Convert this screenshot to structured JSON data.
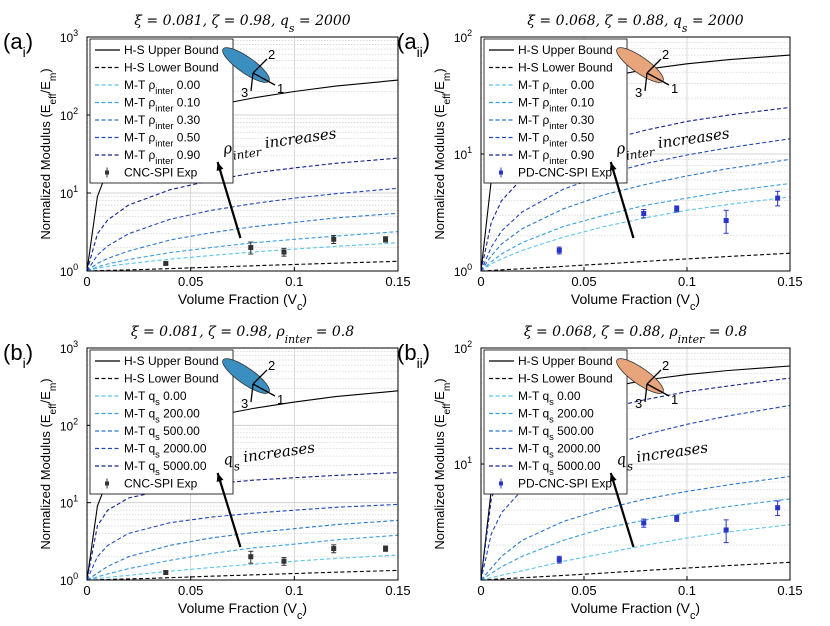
{
  "chart_data": [
    {
      "panel_label": "(a",
      "panel_label_sub": "i",
      "panel_label_close": ")",
      "type": "line",
      "title": "ξ = 0.081, ζ = 0.98, q_s = 2000",
      "xlabel": "Volume Fraction (V_c)",
      "ylabel": "Normalized Modulus (E_eff/E_m)",
      "xlim": [
        0,
        0.15
      ],
      "ylim": [
        1,
        1000
      ],
      "yscale": "log",
      "grid": true,
      "x_ticks": [
        "0",
        "0.05",
        "0.1",
        "0.15"
      ],
      "y_tick_exponents": [
        "0",
        "1",
        "2",
        "3"
      ],
      "legend_position": "top-left",
      "legend": [
        "H-S Upper Bound",
        "H-S Lower Bound",
        "M-T ρ_inter 0.00",
        "M-T ρ_inter 0.10",
        "M-T ρ_inter 0.30",
        "M-T ρ_inter 0.50",
        "M-T ρ_inter 0.90",
        "CNC-SPI Exp"
      ],
      "annotation": "ρ_inter increases",
      "inclusion_color": "#3b8fc0",
      "axes_labels": [
        "1",
        "2",
        "3"
      ],
      "series": [
        {
          "name": "H-S Upper Bound",
          "style": "solid",
          "color": "#000000",
          "x": [
            0,
            0.005,
            0.01,
            0.02,
            0.04,
            0.06,
            0.08,
            0.1,
            0.12,
            0.15
          ],
          "y": [
            1,
            9,
            20,
            45,
            90,
            130,
            165,
            200,
            235,
            280
          ]
        },
        {
          "name": "H-S Lower Bound",
          "style": "dashed",
          "color": "#000000",
          "x": [
            0,
            0.03,
            0.06,
            0.09,
            0.12,
            0.15
          ],
          "y": [
            1,
            1.05,
            1.12,
            1.19,
            1.26,
            1.33
          ]
        },
        {
          "name": "M-T ρ_inter 0.00",
          "style": "dashed",
          "color": "#5bc3ee",
          "x": [
            0,
            0.005,
            0.01,
            0.02,
            0.04,
            0.06,
            0.08,
            0.1,
            0.12,
            0.15
          ],
          "y": [
            1,
            1.09,
            1.15,
            1.24,
            1.42,
            1.58,
            1.75,
            1.91,
            2.07,
            2.3
          ]
        },
        {
          "name": "M-T ρ_inter 0.10",
          "style": "dashed",
          "color": "#3a9ee0",
          "x": [
            0,
            0.005,
            0.01,
            0.02,
            0.04,
            0.06,
            0.08,
            0.1,
            0.12,
            0.15
          ],
          "y": [
            1,
            1.13,
            1.23,
            1.4,
            1.72,
            2.0,
            2.3,
            2.55,
            2.8,
            3.2
          ]
        },
        {
          "name": "M-T ρ_inter 0.30",
          "style": "dashed",
          "color": "#2a78cc",
          "x": [
            0,
            0.005,
            0.01,
            0.02,
            0.04,
            0.06,
            0.08,
            0.1,
            0.12,
            0.15
          ],
          "y": [
            1,
            1.25,
            1.45,
            1.8,
            2.5,
            3.1,
            3.7,
            4.2,
            4.8,
            5.5
          ]
        },
        {
          "name": "M-T ρ_inter 0.50",
          "style": "dashed",
          "color": "#2048b8",
          "x": [
            0,
            0.005,
            0.01,
            0.02,
            0.04,
            0.06,
            0.08,
            0.1,
            0.12,
            0.15
          ],
          "y": [
            1,
            1.6,
            2.1,
            3.0,
            4.6,
            6.0,
            7.3,
            8.6,
            9.8,
            11.5
          ]
        },
        {
          "name": "M-T ρ_inter 0.90",
          "style": "dashed",
          "color": "#10208c",
          "x": [
            0,
            0.005,
            0.01,
            0.02,
            0.04,
            0.06,
            0.08,
            0.1,
            0.12,
            0.15
          ],
          "y": [
            1,
            3.0,
            4.5,
            7.0,
            11,
            14.5,
            18,
            21,
            24,
            28
          ]
        }
      ],
      "experimental": {
        "name": "CNC-SPI Exp",
        "color": "#333333",
        "x": [
          0.038,
          0.079,
          0.095,
          0.119,
          0.144
        ],
        "y": [
          1.25,
          2.0,
          1.75,
          2.55,
          2.55
        ],
        "yerr": [
          0.05,
          0.35,
          0.2,
          0.3,
          0.2
        ]
      }
    },
    {
      "panel_label": "(a",
      "panel_label_sub": "ii",
      "panel_label_close": ")",
      "type": "line",
      "title": "ξ = 0.068, ζ = 0.88, q_s = 2000",
      "xlabel": "Volume Fraction (V_c)",
      "ylabel": "Normalized Modulus (E_eff/E_m)",
      "xlim": [
        0,
        0.15
      ],
      "ylim": [
        1,
        100
      ],
      "yscale": "log",
      "grid": true,
      "x_ticks": [
        "0",
        "0.05",
        "0.1",
        "0.15"
      ],
      "y_tick_exponents": [
        "0",
        "1",
        "2"
      ],
      "legend_position": "top-left",
      "legend": [
        "H-S Upper Bound",
        "H-S Lower Bound",
        "M-T ρ_inter 0.00",
        "M-T ρ_inter 0.10",
        "M-T ρ_inter 0.30",
        "M-T ρ_inter 0.50",
        "M-T ρ_inter 0.90",
        "PD-CNC-SPI Exp"
      ],
      "annotation": "ρ_inter increases",
      "inclusion_color": "#e8a47a",
      "axes_labels": [
        "1",
        "2",
        "3"
      ],
      "series": [
        {
          "name": "H-S Upper Bound",
          "style": "solid",
          "color": "#000000",
          "x": [
            0,
            0.005,
            0.01,
            0.02,
            0.04,
            0.06,
            0.08,
            0.1,
            0.12,
            0.15
          ],
          "y": [
            1,
            6,
            12,
            22,
            35,
            45,
            53,
            59,
            64,
            70
          ]
        },
        {
          "name": "H-S Lower Bound",
          "style": "dashed",
          "color": "#000000",
          "x": [
            0,
            0.03,
            0.06,
            0.09,
            0.12,
            0.15
          ],
          "y": [
            1,
            1.07,
            1.15,
            1.24,
            1.33,
            1.42
          ]
        },
        {
          "name": "M-T ρ_inter 0.00",
          "style": "dashed",
          "color": "#5bc3ee",
          "x": [
            0,
            0.005,
            0.01,
            0.02,
            0.04,
            0.06,
            0.08,
            0.1,
            0.12,
            0.15
          ],
          "y": [
            1,
            1.15,
            1.27,
            1.5,
            1.95,
            2.4,
            2.85,
            3.3,
            3.7,
            4.3
          ]
        },
        {
          "name": "M-T ρ_inter 0.10",
          "style": "dashed",
          "color": "#3a9ee0",
          "x": [
            0,
            0.005,
            0.01,
            0.02,
            0.04,
            0.06,
            0.08,
            0.1,
            0.12,
            0.15
          ],
          "y": [
            1,
            1.2,
            1.4,
            1.75,
            2.4,
            3.0,
            3.65,
            4.2,
            4.8,
            5.6
          ]
        },
        {
          "name": "M-T ρ_inter 0.30",
          "style": "dashed",
          "color": "#2a78cc",
          "x": [
            0,
            0.005,
            0.01,
            0.02,
            0.04,
            0.06,
            0.08,
            0.1,
            0.12,
            0.15
          ],
          "y": [
            1,
            1.35,
            1.7,
            2.3,
            3.4,
            4.5,
            5.5,
            6.5,
            7.5,
            9.0
          ]
        },
        {
          "name": "M-T ρ_inter 0.50",
          "style": "dashed",
          "color": "#2048b8",
          "x": [
            0,
            0.005,
            0.01,
            0.02,
            0.04,
            0.06,
            0.08,
            0.1,
            0.12,
            0.15
          ],
          "y": [
            1,
            1.6,
            2.2,
            3.2,
            5.0,
            6.7,
            8.3,
            9.8,
            11.3,
            13.5
          ]
        },
        {
          "name": "M-T ρ_inter 0.90",
          "style": "dashed",
          "color": "#10208c",
          "x": [
            0,
            0.005,
            0.01,
            0.02,
            0.04,
            0.06,
            0.08,
            0.1,
            0.12,
            0.15
          ],
          "y": [
            1,
            2.6,
            4.0,
            6.2,
            9.8,
            13,
            16,
            19,
            21.5,
            25
          ]
        }
      ],
      "experimental": {
        "name": "PD-CNC-SPI Exp",
        "color": "#2b35c8",
        "x": [
          0.038,
          0.079,
          0.095,
          0.119,
          0.144
        ],
        "y": [
          1.5,
          3.1,
          3.4,
          2.7,
          4.2
        ],
        "yerr": [
          0.1,
          0.25,
          0.2,
          0.6,
          0.6
        ]
      }
    },
    {
      "panel_label": "(b",
      "panel_label_sub": "i",
      "panel_label_close": ")",
      "type": "line",
      "title": "ξ = 0.081, ζ = 0.98, ρ_inter = 0.8",
      "xlabel": "Volume Fraction (V_c)",
      "ylabel": "Normalized Modulus (E_eff/E_m)",
      "xlim": [
        0,
        0.15
      ],
      "ylim": [
        1,
        1000
      ],
      "yscale": "log",
      "grid": true,
      "x_ticks": [
        "0",
        "0.05",
        "0.1",
        "0.15"
      ],
      "y_tick_exponents": [
        "0",
        "1",
        "2",
        "3"
      ],
      "legend_position": "top-left",
      "legend": [
        "H-S Upper Bound",
        "H-S Lower Bound",
        "M-T q_s 0.00",
        "M-T q_s 200.00",
        "M-T q_s 500.00",
        "M-T q_s 2000.00",
        "M-T q_s 5000.00",
        "CNC-SPI Exp"
      ],
      "annotation": "q_s increases",
      "inclusion_color": "#3b8fc0",
      "axes_labels": [
        "1",
        "2",
        "3"
      ],
      "series": [
        {
          "name": "H-S Upper Bound",
          "style": "solid",
          "color": "#000000",
          "x": [
            0,
            0.005,
            0.01,
            0.02,
            0.04,
            0.06,
            0.08,
            0.1,
            0.12,
            0.15
          ],
          "y": [
            1,
            9,
            20,
            45,
            90,
            130,
            165,
            200,
            235,
            280
          ]
        },
        {
          "name": "H-S Lower Bound",
          "style": "dashed",
          "color": "#000000",
          "x": [
            0,
            0.03,
            0.06,
            0.09,
            0.12,
            0.15
          ],
          "y": [
            1,
            1.05,
            1.12,
            1.19,
            1.26,
            1.33
          ]
        },
        {
          "name": "M-T q_s 0.00",
          "style": "dashed",
          "color": "#5bc3ee",
          "x": [
            0,
            0.01,
            0.02,
            0.04,
            0.06,
            0.08,
            0.1,
            0.12,
            0.15
          ],
          "y": [
            1,
            1.08,
            1.15,
            1.3,
            1.45,
            1.6,
            1.75,
            1.9,
            2.1
          ]
        },
        {
          "name": "M-T q_s 200.00",
          "style": "dashed",
          "color": "#3a9ee0",
          "x": [
            0,
            0.01,
            0.02,
            0.04,
            0.06,
            0.08,
            0.1,
            0.12,
            0.15
          ],
          "y": [
            1,
            1.2,
            1.4,
            1.8,
            2.2,
            2.6,
            2.9,
            3.3,
            3.8
          ]
        },
        {
          "name": "M-T q_s 500.00",
          "style": "dashed",
          "color": "#2a78cc",
          "x": [
            0,
            0.01,
            0.02,
            0.04,
            0.06,
            0.08,
            0.1,
            0.12,
            0.15
          ],
          "y": [
            1,
            1.5,
            2.0,
            2.8,
            3.5,
            4.1,
            4.6,
            5.2,
            5.9
          ]
        },
        {
          "name": "M-T q_s 2000.00",
          "style": "dashed",
          "color": "#2048b8",
          "x": [
            0,
            0.005,
            0.01,
            0.02,
            0.04,
            0.06,
            0.08,
            0.1,
            0.12,
            0.15
          ],
          "y": [
            1,
            2.0,
            2.8,
            4.0,
            5.5,
            6.5,
            7.3,
            8.0,
            8.7,
            9.5
          ]
        },
        {
          "name": "M-T q_s 5000.00",
          "style": "dashed",
          "color": "#10208c",
          "x": [
            0,
            0.005,
            0.01,
            0.02,
            0.04,
            0.06,
            0.08,
            0.1,
            0.12,
            0.15
          ],
          "y": [
            1,
            5,
            8,
            11.5,
            15,
            17.5,
            19.5,
            21,
            22.5,
            24.5
          ]
        }
      ],
      "experimental": {
        "name": "CNC-SPI Exp",
        "color": "#333333",
        "x": [
          0.038,
          0.079,
          0.095,
          0.119,
          0.144
        ],
        "y": [
          1.25,
          2.0,
          1.75,
          2.55,
          2.55
        ],
        "yerr": [
          0.05,
          0.35,
          0.2,
          0.3,
          0.2
        ]
      }
    },
    {
      "panel_label": "(b",
      "panel_label_sub": "ii",
      "panel_label_close": ")",
      "type": "line",
      "title": "ξ = 0.068, ζ = 0.88, ρ_inter = 0.8",
      "xlabel": "Volume Fraction (V_c)",
      "ylabel": "Normalized Modulus (E_eff/E_m)",
      "xlim": [
        0,
        0.15
      ],
      "ylim": [
        1,
        100
      ],
      "yscale": "log",
      "grid": true,
      "x_ticks": [
        "0",
        "0.05",
        "0.1",
        "0.15"
      ],
      "y_tick_exponents": [
        "1",
        "2"
      ],
      "legend_position": "top-left",
      "legend": [
        "H-S Upper Bound",
        "H-S Lower Bound",
        "M-T q_s 0.00",
        "M-T q_s 200.00",
        "M-T q_s 500.00",
        "M-T q_s 2000.00",
        "M-T q_s 5000.00",
        "PD-CNC-SPI Exp"
      ],
      "annotation": "q_s increases",
      "inclusion_color": "#e8a47a",
      "axes_labels": [
        "1",
        "2",
        "3"
      ],
      "series": [
        {
          "name": "H-S Upper Bound",
          "style": "solid",
          "color": "#000000",
          "x": [
            0,
            0.005,
            0.01,
            0.02,
            0.04,
            0.06,
            0.08,
            0.1,
            0.12,
            0.15
          ],
          "y": [
            1,
            6,
            12,
            22,
            35,
            45,
            53,
            59,
            64,
            70
          ]
        },
        {
          "name": "H-S Lower Bound",
          "style": "dashed",
          "color": "#000000",
          "x": [
            0,
            0.03,
            0.06,
            0.09,
            0.12,
            0.15
          ],
          "y": [
            1,
            1.07,
            1.15,
            1.24,
            1.33,
            1.42
          ]
        },
        {
          "name": "M-T q_s 0.00",
          "style": "dashed",
          "color": "#5bc3ee",
          "x": [
            0,
            0.01,
            0.02,
            0.04,
            0.06,
            0.08,
            0.1,
            0.12,
            0.15
          ],
          "y": [
            1,
            1.1,
            1.2,
            1.45,
            1.7,
            2.0,
            2.3,
            2.6,
            3.0
          ]
        },
        {
          "name": "M-T q_s 200.00",
          "style": "dashed",
          "color": "#3a9ee0",
          "x": [
            0,
            0.01,
            0.02,
            0.04,
            0.06,
            0.08,
            0.1,
            0.12,
            0.15
          ],
          "y": [
            1,
            1.3,
            1.6,
            2.2,
            2.8,
            3.3,
            3.8,
            4.3,
            5.0
          ]
        },
        {
          "name": "M-T q_s 500.00",
          "style": "dashed",
          "color": "#2a78cc",
          "x": [
            0,
            0.01,
            0.02,
            0.04,
            0.06,
            0.08,
            0.1,
            0.12,
            0.15
          ],
          "y": [
            1,
            1.6,
            2.2,
            3.2,
            4.1,
            5.0,
            5.8,
            6.6,
            7.8
          ]
        },
        {
          "name": "M-T q_s 2000.00",
          "style": "dashed",
          "color": "#2048b8",
          "x": [
            0,
            0.005,
            0.01,
            0.02,
            0.04,
            0.06,
            0.08,
            0.1,
            0.12,
            0.15
          ],
          "y": [
            1,
            2.5,
            3.8,
            6,
            10,
            14,
            18,
            22,
            26,
            32
          ]
        },
        {
          "name": "M-T q_s 5000.00",
          "style": "dashed",
          "color": "#10208c",
          "x": [
            0,
            0.005,
            0.01,
            0.02,
            0.04,
            0.06,
            0.08,
            0.1,
            0.12,
            0.15
          ],
          "y": [
            1,
            5,
            9,
            15,
            23,
            30,
            36,
            42,
            47,
            55
          ]
        }
      ],
      "experimental": {
        "name": "PD-CNC-SPI Exp",
        "color": "#2b35c8",
        "x": [
          0.038,
          0.079,
          0.095,
          0.119,
          0.144
        ],
        "y": [
          1.5,
          3.1,
          3.4,
          2.7,
          4.2
        ],
        "yerr": [
          0.1,
          0.25,
          0.2,
          0.6,
          0.6
        ]
      }
    }
  ]
}
